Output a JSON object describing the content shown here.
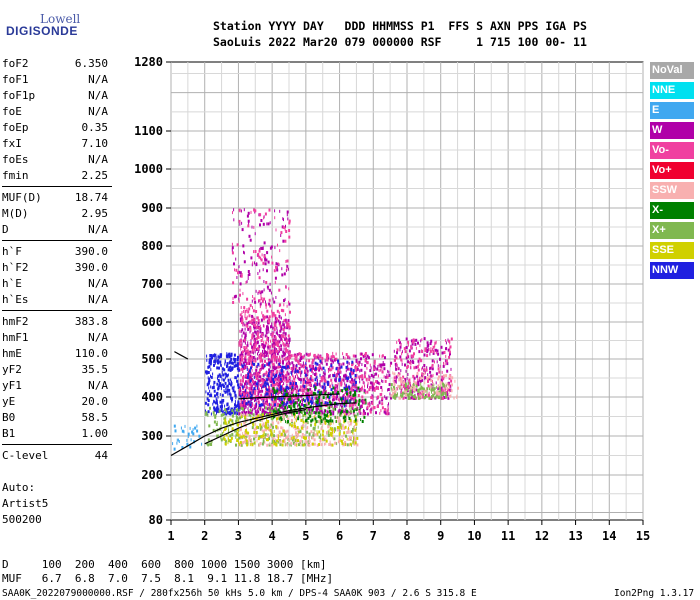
{
  "logo": {
    "top": "Lowell",
    "bottom": "DIGISONDE"
  },
  "header": {
    "line1": "Station YYYY DAY   DDD HHMMSS P1  FFS S AXN PPS IGA PS",
    "line2": "SaoLuis 2022 Mar20 079 000000 RSF     1 715 100 00- 11"
  },
  "params": [
    {
      "label": "foF2",
      "value": "6.350"
    },
    {
      "label": "foF1",
      "value": "N/A"
    },
    {
      "label": "foF1p",
      "value": "N/A"
    },
    {
      "label": "foE",
      "value": "N/A"
    },
    {
      "label": "foEp",
      "value": "0.35"
    },
    {
      "label": "fxI",
      "value": "7.10"
    },
    {
      "label": "foEs",
      "value": "N/A"
    },
    {
      "label": "fmin",
      "value": "2.25"
    },
    {
      "label": "MUF(D)",
      "value": "18.74"
    },
    {
      "label": "M(D)",
      "value": "2.95"
    },
    {
      "label": "D",
      "value": "N/A"
    },
    {
      "label": "h`F",
      "value": "390.0"
    },
    {
      "label": "h`F2",
      "value": "390.0"
    },
    {
      "label": "h`E",
      "value": "N/A"
    },
    {
      "label": "h`Es",
      "value": "N/A"
    },
    {
      "label": "hmF2",
      "value": "383.8"
    },
    {
      "label": "hmF1",
      "value": "N/A"
    },
    {
      "label": "hmE",
      "value": "110.0"
    },
    {
      "label": "yF2",
      "value": "35.5"
    },
    {
      "label": "yF1",
      "value": "N/A"
    },
    {
      "label": "yE",
      "value": "20.0"
    },
    {
      "label": "B0",
      "value": "58.5"
    },
    {
      "label": "B1",
      "value": "1.00"
    },
    {
      "label": "C-level",
      "value": "44"
    }
  ],
  "auto": {
    "line1": "Auto:",
    "line2": "Artist5",
    "line3": "500200"
  },
  "legend": [
    {
      "label": "NoVal",
      "color": "#a8a8a8"
    },
    {
      "label": "NNE",
      "color": "#00e0f0"
    },
    {
      "label": "E",
      "color": "#40a8f0"
    },
    {
      "label": "W",
      "color": "#b000a8"
    },
    {
      "label": "Vo-",
      "color": "#f040a0"
    },
    {
      "label": "Vo+",
      "color": "#f00030"
    },
    {
      "label": "SSW",
      "color": "#f8b0b0"
    },
    {
      "label": "X-",
      "color": "#008000"
    },
    {
      "label": "X+",
      "color": "#80b850"
    },
    {
      "label": "SSE",
      "color": "#d0d000"
    },
    {
      "label": "NNW",
      "color": "#2020e0"
    }
  ],
  "muf_table": {
    "d_line": "D     100  200  400  600  800 1000 1500 3000 [km]",
    "muf_line": "MUF   6.7  6.8  7.0  7.5  8.1  9.1 11.8 18.7 [MHz]"
  },
  "footer": {
    "left": "SAA0K_2022079000000.RSF / 280fx256h 50 kHs 5.0 km / DPS-4 SAA0K 903 / 2.6 S 315.8 E",
    "right": "Ion2Png 1.3.17"
  },
  "chart_data": {
    "type": "scatter",
    "xlim": [
      1,
      15
    ],
    "ylim": [
      80,
      1280
    ],
    "x_ticks": [
      1,
      2,
      3,
      4,
      5,
      6,
      7,
      8,
      9,
      10,
      11,
      12,
      13,
      14,
      15
    ],
    "y_ticks": [
      80,
      200,
      300,
      400,
      500,
      600,
      700,
      800,
      900,
      1000,
      1100,
      1280
    ],
    "grid": true,
    "legend_position": "right",
    "clusters": [
      {
        "x": [
          3.0,
          4.5
        ],
        "y": [
          360,
          620
        ],
        "color": "#b000a8",
        "n": 700
      },
      {
        "x": [
          2.0,
          3.0
        ],
        "y": [
          360,
          520
        ],
        "color": "#2020e0",
        "n": 280
      },
      {
        "x": [
          3.0,
          4.5
        ],
        "y": [
          380,
          650
        ],
        "color": "#f040a0",
        "n": 450
      },
      {
        "x": [
          4.5,
          6.5
        ],
        "y": [
          360,
          520
        ],
        "color": "#b000a8",
        "n": 350
      },
      {
        "x": [
          4.5,
          6.5
        ],
        "y": [
          380,
          520
        ],
        "color": "#f040a0",
        "n": 260
      },
      {
        "x": [
          3.0,
          6.5
        ],
        "y": [
          380,
          500
        ],
        "color": "#2020e0",
        "n": 220
      },
      {
        "x": [
          2.0,
          6.5
        ],
        "y": [
          280,
          380
        ],
        "color": "#80b850",
        "n": 300
      },
      {
        "x": [
          3.0,
          6.5
        ],
        "y": [
          280,
          360
        ],
        "color": "#f8b0b0",
        "n": 260
      },
      {
        "x": [
          2.5,
          6.5
        ],
        "y": [
          280,
          360
        ],
        "color": "#d0d000",
        "n": 180
      },
      {
        "x": [
          4.0,
          6.8
        ],
        "y": [
          340,
          430
        ],
        "color": "#008000",
        "n": 180
      },
      {
        "x": [
          6.5,
          7.5
        ],
        "y": [
          360,
          520
        ],
        "color": "#b000a8",
        "n": 120
      },
      {
        "x": [
          6.5,
          7.5
        ],
        "y": [
          360,
          520
        ],
        "color": "#f040a0",
        "n": 90
      },
      {
        "x": [
          7.6,
          9.3
        ],
        "y": [
          400,
          560
        ],
        "color": "#b000a8",
        "n": 180
      },
      {
        "x": [
          7.6,
          9.3
        ],
        "y": [
          400,
          560
        ],
        "color": "#f040a0",
        "n": 150
      },
      {
        "x": [
          7.5,
          9.2
        ],
        "y": [
          400,
          440
        ],
        "color": "#80b850",
        "n": 120
      },
      {
        "x": [
          7.5,
          9.5
        ],
        "y": [
          400,
          470
        ],
        "color": "#f8b0b0",
        "n": 80
      },
      {
        "x": [
          2.8,
          4.5
        ],
        "y": [
          650,
          900
        ],
        "color": "#b000a8",
        "n": 120
      },
      {
        "x": [
          2.8,
          4.5
        ],
        "y": [
          650,
          900
        ],
        "color": "#f040a0",
        "n": 80
      },
      {
        "x": [
          1.0,
          2.0
        ],
        "y": [
          270,
          330
        ],
        "color": "#40a8f0",
        "n": 30
      }
    ],
    "trace_curves": [
      {
        "points": [
          [
            1.0,
            250
          ],
          [
            1.5,
            275
          ],
          [
            2.0,
            300
          ],
          [
            2.5,
            320
          ],
          [
            3.0,
            335
          ],
          [
            3.5,
            345
          ],
          [
            4.0,
            355
          ],
          [
            4.5,
            365
          ],
          [
            5.0,
            372
          ],
          [
            5.5,
            378
          ],
          [
            6.0,
            383
          ],
          [
            6.5,
            385
          ]
        ],
        "color": "#000000"
      },
      {
        "points": [
          [
            2.0,
            280
          ],
          [
            2.5,
            300
          ],
          [
            3.0,
            320
          ],
          [
            3.5,
            338
          ],
          [
            4.0,
            350
          ],
          [
            4.5,
            360
          ],
          [
            5.0,
            368
          ]
        ],
        "color": "#000000"
      },
      {
        "points": [
          [
            3.0,
            395
          ],
          [
            3.5,
            398
          ],
          [
            4.0,
            400
          ],
          [
            4.5,
            402
          ],
          [
            5.0,
            404
          ],
          [
            5.5,
            406
          ],
          [
            6.0,
            408
          ]
        ],
        "color": "#000000"
      },
      {
        "points": [
          [
            1.1,
            520
          ],
          [
            1.3,
            510
          ],
          [
            1.5,
            500
          ]
        ],
        "color": "#000000"
      }
    ]
  }
}
